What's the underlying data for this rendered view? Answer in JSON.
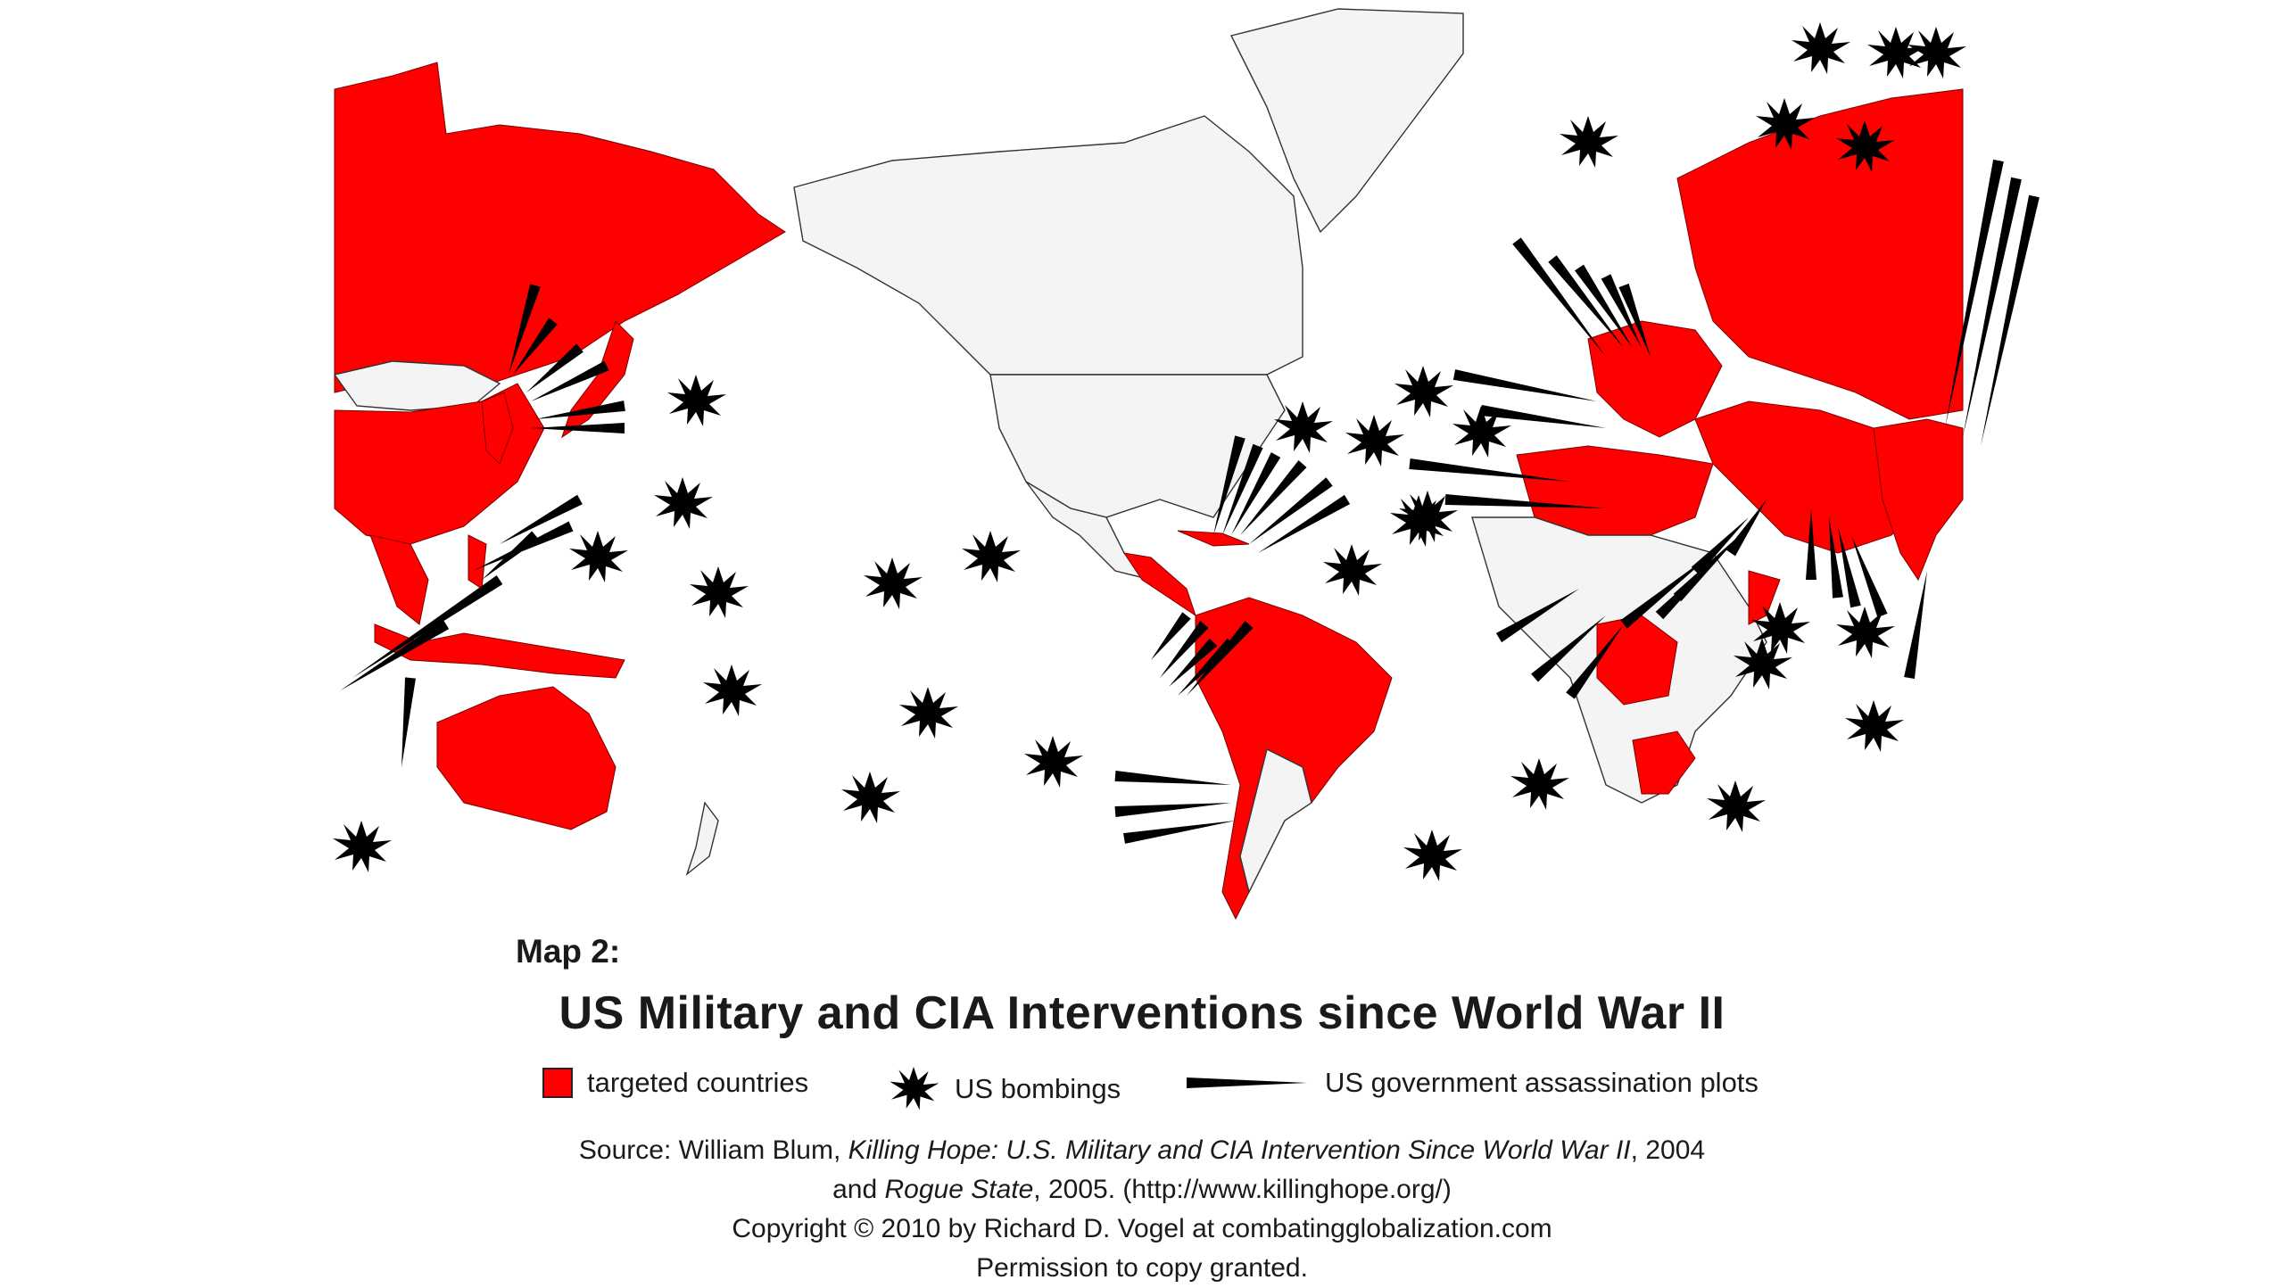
{
  "map": {
    "label": "Map 2:",
    "title": "US Military and CIA Interventions since World War II",
    "colors": {
      "targeted": "#ff0000",
      "land": "#f4f4f4",
      "marker": "#000000"
    }
  },
  "legend": {
    "targeted": "targeted countries",
    "bombings": "US bombings",
    "plots": "US government assassination plots"
  },
  "source": {
    "prefix": "Source:  William Blum, ",
    "book1": "Killing Hope: U.S. Military and CIA Intervention Since World War II",
    "year1": ", 2004",
    "and": "and ",
    "book2": "Rogue State",
    "year2": ", 2005. (http://www.killinghope.org/)",
    "copyright": "Copyright  ©  2010 by Richard D. Vogel at combatingglobalization.com",
    "permission": "Permission to copy granted."
  }
}
